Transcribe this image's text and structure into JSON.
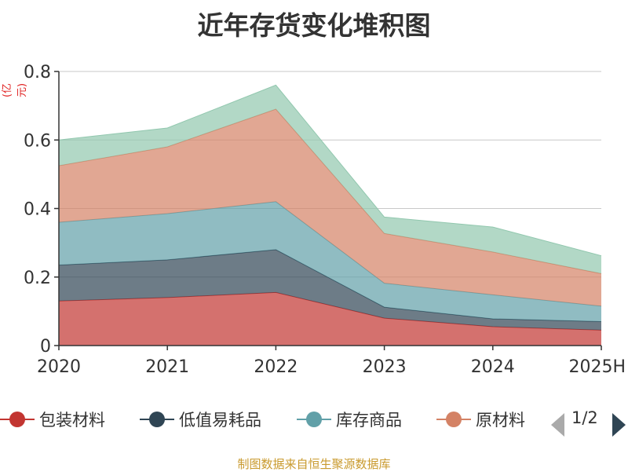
{
  "title": "近年存货变化堆积图",
  "unit_label": "(亿元)",
  "footer": "制图数据来自恒生聚源数据库",
  "pager": {
    "text": "1/2"
  },
  "chart_data": {
    "type": "area",
    "stacked": true,
    "categories": [
      "2020",
      "2021",
      "2022",
      "2023",
      "2024",
      "2025H"
    ],
    "ylim": [
      0,
      0.8
    ],
    "yticks": [
      "0",
      "0.2",
      "0.4",
      "0.6",
      "0.8"
    ],
    "grid": true,
    "legend_position": "bottom",
    "series": [
      {
        "name": "包装材料",
        "color": "#c23531",
        "values": [
          0.13,
          0.14,
          0.155,
          0.08,
          0.055,
          0.045
        ]
      },
      {
        "name": "低值易耗品",
        "color": "#2f4554",
        "values": [
          0.105,
          0.11,
          0.125,
          0.032,
          0.023,
          0.025
        ]
      },
      {
        "name": "库存商品",
        "color": "#61a0a8",
        "values": [
          0.125,
          0.135,
          0.14,
          0.07,
          0.07,
          0.045
        ]
      },
      {
        "name": "原材料",
        "color": "#d48265",
        "values": [
          0.165,
          0.195,
          0.27,
          0.145,
          0.125,
          0.095
        ]
      },
      {
        "name": "",
        "color": "#91c7ae",
        "values": [
          0.075,
          0.055,
          0.07,
          0.048,
          0.073,
          0.052
        ]
      }
    ]
  }
}
